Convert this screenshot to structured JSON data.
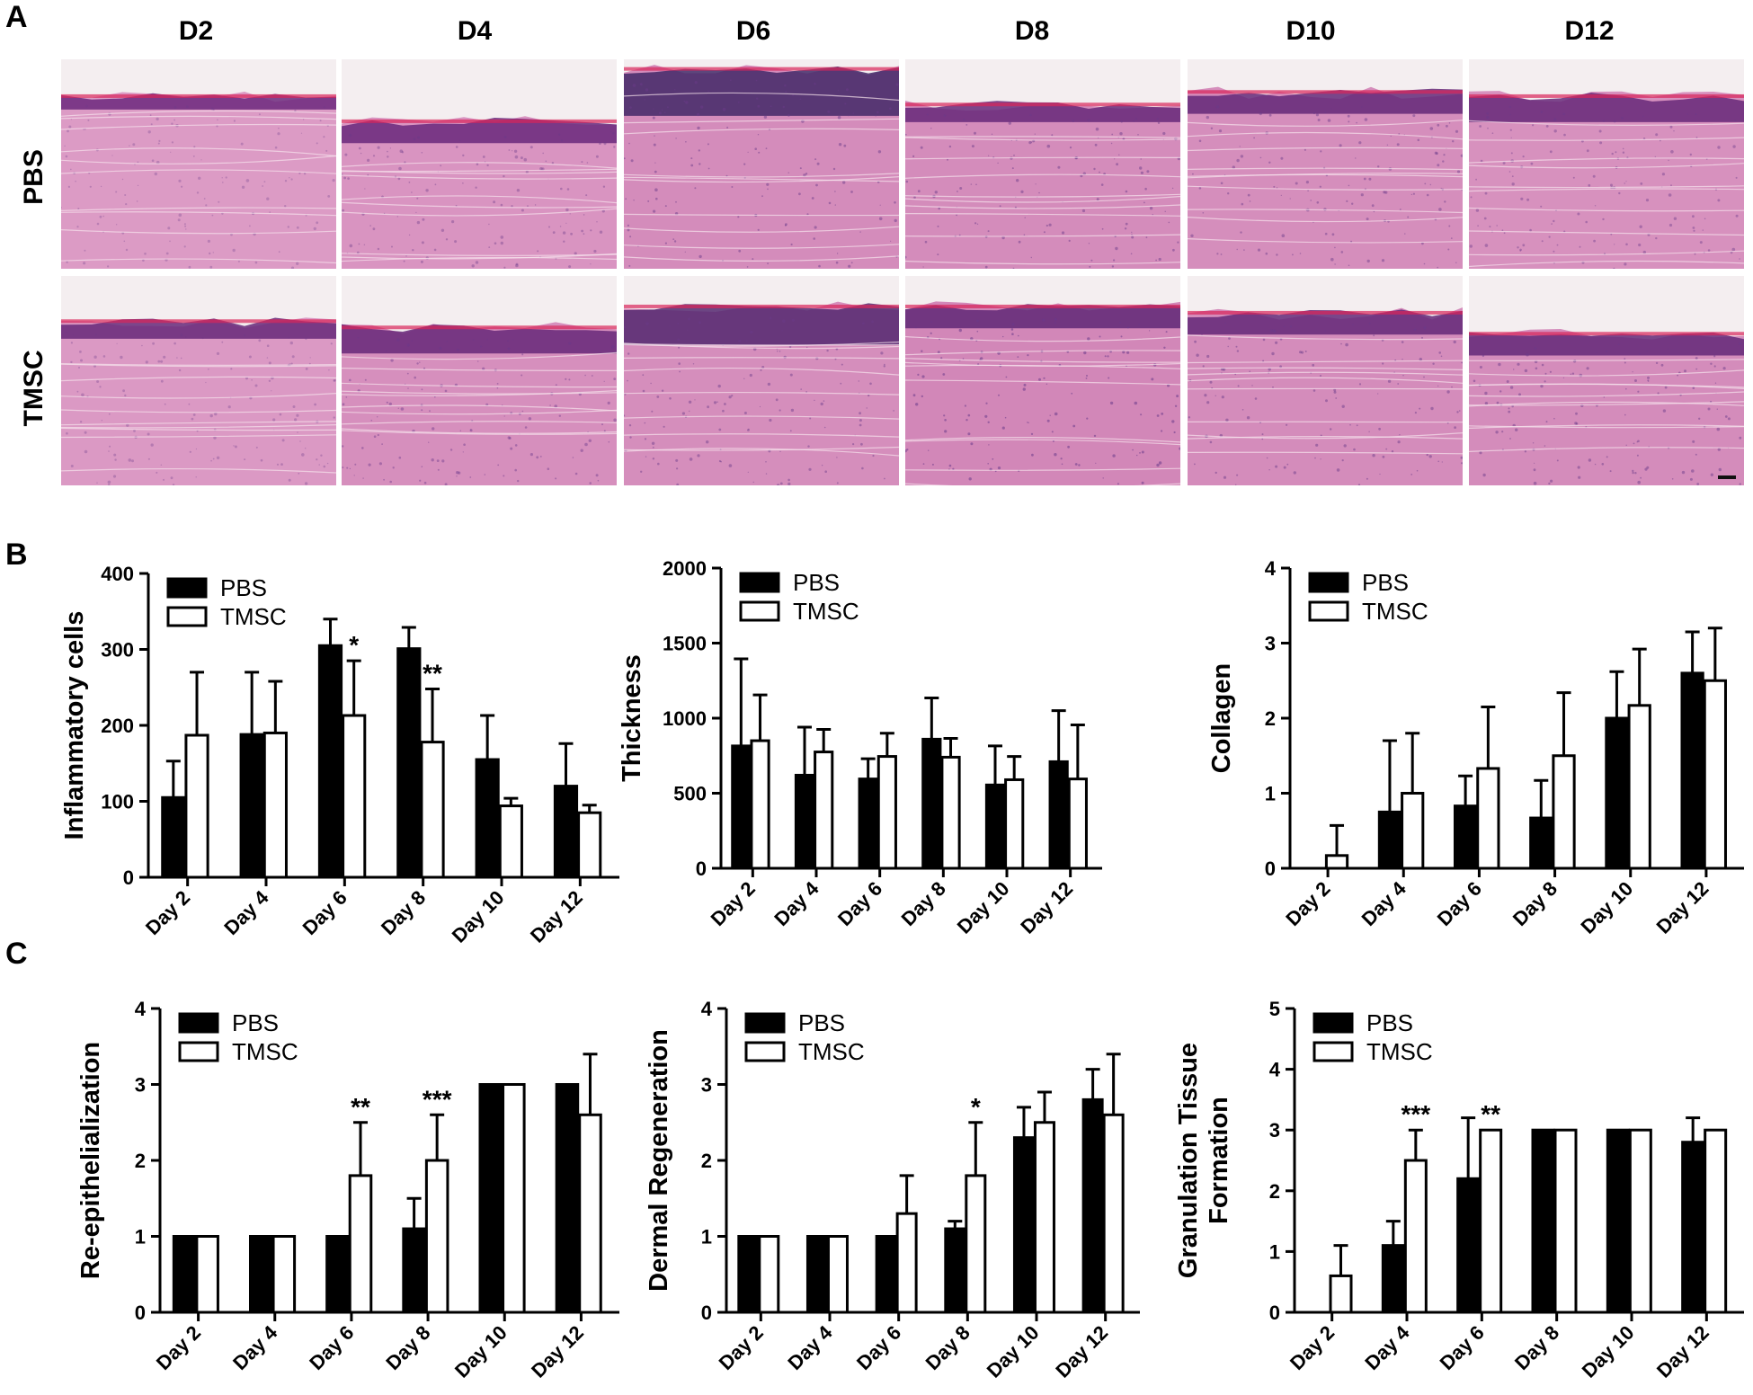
{
  "panel_labels": [
    "A",
    "B",
    "C"
  ],
  "histology": {
    "columns": [
      "D2",
      "D4",
      "D6",
      "D8",
      "D10",
      "D12"
    ],
    "rows": [
      "PBS",
      "TMSC"
    ]
  },
  "chart_data": [
    {
      "type": "bar",
      "categories": [
        "Day 2",
        "Day 4",
        "Day 6",
        "Day 8",
        "Day 10",
        "Day 12"
      ],
      "ylabel": "Inflammatory cells",
      "ylim": [
        0,
        400
      ],
      "yticks": [
        0,
        100,
        200,
        300,
        400
      ],
      "legend": "top-left",
      "series": [
        {
          "name": "PBS",
          "values": [
            105,
            188,
            305,
            301,
            155,
            120
          ],
          "errors": [
            48,
            82,
            35,
            28,
            58,
            56
          ]
        },
        {
          "name": "TMSC",
          "values": [
            187,
            190,
            213,
            178,
            94,
            85
          ],
          "errors": [
            83,
            68,
            72,
            70,
            10,
            10
          ]
        }
      ],
      "annotations": [
        {
          "category": "Day 6",
          "series": "TMSC",
          "text": "*"
        },
        {
          "category": "Day 8",
          "series": "TMSC",
          "text": "**"
        }
      ]
    },
    {
      "type": "bar",
      "categories": [
        "Day 2",
        "Day 4",
        "Day 6",
        "Day 8",
        "Day 10",
        "Day 12"
      ],
      "ylabel": "Thickness",
      "ylim": [
        0,
        2000
      ],
      "yticks": [
        0,
        500,
        1000,
        1500,
        2000
      ],
      "legend": "top-left",
      "series": [
        {
          "name": "PBS",
          "values": [
            815,
            620,
            595,
            860,
            555,
            710
          ],
          "errors": [
            580,
            320,
            135,
            275,
            260,
            340
          ]
        },
        {
          "name": "TMSC",
          "values": [
            850,
            775,
            745,
            740,
            590,
            595
          ],
          "errors": [
            305,
            150,
            155,
            125,
            155,
            360
          ]
        }
      ],
      "annotations": []
    },
    {
      "type": "bar",
      "categories": [
        "Day 2",
        "Day 4",
        "Day 6",
        "Day 8",
        "Day 10",
        "Day 12"
      ],
      "ylabel": "Collagen",
      "ylim": [
        0,
        4
      ],
      "yticks": [
        0,
        1,
        2,
        3,
        4
      ],
      "legend": "top-left",
      "series": [
        {
          "name": "PBS",
          "values": [
            0,
            0.75,
            0.83,
            0.67,
            2.0,
            2.6
          ],
          "errors": [
            0,
            0.95,
            0.4,
            0.5,
            0.62,
            0.55
          ]
        },
        {
          "name": "TMSC",
          "values": [
            0.17,
            1.0,
            1.33,
            1.5,
            2.17,
            2.5
          ],
          "errors": [
            0.4,
            0.8,
            0.82,
            0.84,
            0.75,
            0.7
          ]
        }
      ],
      "annotations": []
    },
    {
      "type": "bar",
      "categories": [
        "Day 2",
        "Day 4",
        "Day 6",
        "Day 8",
        "Day 10",
        "Day 12"
      ],
      "ylabel": "Re-epithelialization",
      "ylim": [
        0,
        4
      ],
      "yticks": [
        0,
        1,
        2,
        3,
        4
      ],
      "legend": "top-left",
      "series": [
        {
          "name": "PBS",
          "values": [
            1,
            1,
            1,
            1.1,
            3,
            3
          ],
          "errors": [
            0,
            0,
            0,
            0.4,
            0,
            0
          ]
        },
        {
          "name": "TMSC",
          "values": [
            1,
            1,
            1.8,
            2.0,
            3,
            2.6
          ],
          "errors": [
            0,
            0,
            0.7,
            0.6,
            0,
            0.8
          ]
        }
      ],
      "annotations": [
        {
          "category": "Day 6",
          "series": "TMSC",
          "text": "**"
        },
        {
          "category": "Day 8",
          "series": "TMSC",
          "text": "***"
        }
      ]
    },
    {
      "type": "bar",
      "categories": [
        "Day 2",
        "Day 4",
        "Day 6",
        "Day 8",
        "Day 10",
        "Day 12"
      ],
      "ylabel": "Dermal Regeneration",
      "ylim": [
        0,
        4
      ],
      "yticks": [
        0,
        1,
        2,
        3,
        4
      ],
      "legend": "top-left",
      "series": [
        {
          "name": "PBS",
          "values": [
            1,
            1,
            1,
            1.1,
            2.3,
            2.8
          ],
          "errors": [
            0,
            0,
            0,
            0.1,
            0.4,
            0.4
          ]
        },
        {
          "name": "TMSC",
          "values": [
            1,
            1,
            1.3,
            1.8,
            2.5,
            2.6
          ],
          "errors": [
            0,
            0,
            0.5,
            0.7,
            0.4,
            0.8
          ]
        }
      ],
      "annotations": [
        {
          "category": "Day 8",
          "series": "TMSC",
          "text": "*"
        }
      ]
    },
    {
      "type": "bar",
      "categories": [
        "Day 2",
        "Day 4",
        "Day 6",
        "Day 8",
        "Day 10",
        "Day 12"
      ],
      "ylabel": "Granulation Tissue Formation",
      "ylabel_lines": [
        "Granulation Tissue",
        "Formation"
      ],
      "ylim": [
        0,
        5
      ],
      "yticks": [
        0,
        1,
        2,
        3,
        4,
        5
      ],
      "legend": "top-left",
      "series": [
        {
          "name": "PBS",
          "values": [
            0,
            1.1,
            2.2,
            3,
            3,
            2.8
          ],
          "errors": [
            0,
            0.4,
            1.0,
            0,
            0,
            0.4
          ]
        },
        {
          "name": "TMSC",
          "values": [
            0.6,
            2.5,
            3,
            3,
            3,
            3
          ],
          "errors": [
            0.5,
            0.5,
            0,
            0,
            0,
            0
          ]
        }
      ],
      "annotations": [
        {
          "category": "Day 4",
          "series": "TMSC",
          "text": "***"
        },
        {
          "category": "Day 6",
          "series": "TMSC",
          "text": "**"
        }
      ]
    }
  ]
}
